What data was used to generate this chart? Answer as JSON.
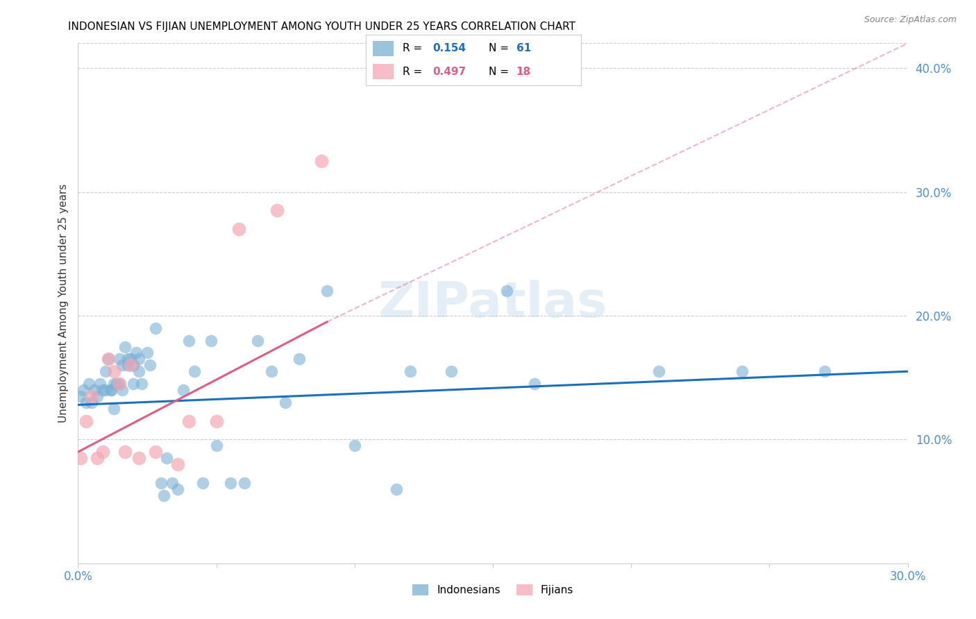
{
  "title": "INDONESIAN VS FIJIAN UNEMPLOYMENT AMONG YOUTH UNDER 25 YEARS CORRELATION CHART",
  "source": "Source: ZipAtlas.com",
  "ylabel": "Unemployment Among Youth under 25 years",
  "xlim": [
    0.0,
    0.3
  ],
  "ylim": [
    0.0,
    0.42
  ],
  "xticks": [
    0.0,
    0.05,
    0.1,
    0.15,
    0.2,
    0.25,
    0.3
  ],
  "xtick_labels": [
    "0.0%",
    "",
    "",
    "",
    "",
    "",
    "30.0%"
  ],
  "yticks": [
    0.0,
    0.1,
    0.2,
    0.3,
    0.4
  ],
  "ytick_labels": [
    "",
    "10.0%",
    "20.0%",
    "30.0%",
    "40.0%"
  ],
  "color_indonesian": "#7bafd4",
  "color_fijian": "#f4a7b4",
  "color_trend_indonesian": "#1a6fbe",
  "color_trend_fijian": "#e05c80",
  "color_axis_text": "#4d8fcc",
  "watermark": "ZIPatlas",
  "indonesian_x": [
    0.001,
    0.002,
    0.003,
    0.004,
    0.005,
    0.006,
    0.007,
    0.008,
    0.009,
    0.01,
    0.01,
    0.011,
    0.012,
    0.012,
    0.013,
    0.013,
    0.014,
    0.015,
    0.015,
    0.016,
    0.016,
    0.017,
    0.018,
    0.018,
    0.019,
    0.02,
    0.02,
    0.021,
    0.022,
    0.022,
    0.023,
    0.025,
    0.026,
    0.028,
    0.03,
    0.031,
    0.032,
    0.034,
    0.036,
    0.038,
    0.04,
    0.042,
    0.045,
    0.048,
    0.05,
    0.055,
    0.06,
    0.065,
    0.07,
    0.075,
    0.08,
    0.09,
    0.1,
    0.115,
    0.12,
    0.135,
    0.155,
    0.165,
    0.21,
    0.24,
    0.27
  ],
  "indonesian_y": [
    0.135,
    0.14,
    0.13,
    0.145,
    0.13,
    0.14,
    0.135,
    0.145,
    0.14,
    0.14,
    0.155,
    0.165,
    0.14,
    0.14,
    0.145,
    0.125,
    0.145,
    0.165,
    0.145,
    0.14,
    0.16,
    0.175,
    0.16,
    0.165,
    0.165,
    0.145,
    0.16,
    0.17,
    0.165,
    0.155,
    0.145,
    0.17,
    0.16,
    0.19,
    0.065,
    0.055,
    0.085,
    0.065,
    0.06,
    0.14,
    0.18,
    0.155,
    0.065,
    0.18,
    0.095,
    0.065,
    0.065,
    0.18,
    0.155,
    0.13,
    0.165,
    0.22,
    0.095,
    0.06,
    0.155,
    0.155,
    0.22,
    0.145,
    0.155,
    0.155,
    0.155
  ],
  "fijian_x": [
    0.001,
    0.003,
    0.005,
    0.007,
    0.009,
    0.011,
    0.013,
    0.015,
    0.017,
    0.019,
    0.022,
    0.028,
    0.036,
    0.04,
    0.05,
    0.058,
    0.072,
    0.088
  ],
  "fijian_y": [
    0.085,
    0.115,
    0.135,
    0.085,
    0.09,
    0.165,
    0.155,
    0.145,
    0.09,
    0.16,
    0.085,
    0.09,
    0.08,
    0.115,
    0.115,
    0.27,
    0.285,
    0.325
  ],
  "trend_indo_x0": 0.0,
  "trend_indo_x1": 0.3,
  "trend_indo_y0": 0.128,
  "trend_indo_y1": 0.155,
  "trend_fijian_solid_x0": 0.0,
  "trend_fijian_solid_x1": 0.09,
  "trend_fijian_solid_y0": 0.09,
  "trend_fijian_solid_y1": 0.195,
  "trend_fijian_dashed_x0": 0.09,
  "trend_fijian_dashed_x1": 0.3,
  "trend_fijian_dashed_y0": 0.195,
  "trend_fijian_dashed_y1": 0.42
}
